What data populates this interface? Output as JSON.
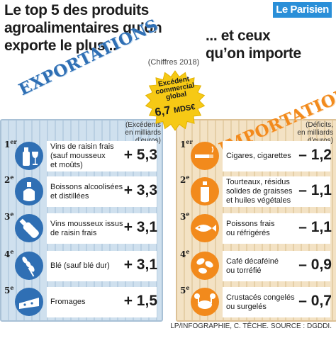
{
  "header": {
    "title_left": "Le top 5 des produits\nagroalimentaires qu’on\nexporte le plus...",
    "title_right": "... et ceux\nqu’on importe",
    "logo": "Le Parisien",
    "year_note": "(Chiffres 2018)"
  },
  "burst": {
    "label": "Excédent\ncommercial\nglobal",
    "value": "6,7",
    "unit": "MDS€",
    "color": "#f6c915"
  },
  "exports": {
    "heading": "EXPORTATIONS",
    "unit_note": "(Excédents\nen milliards d’euros)",
    "color": "#2f6fb4"
  },
  "imports": {
    "heading": "IMPORTATIONS",
    "unit_note": "(Déficits,\nen milliards d’euros)",
    "color": "#f28a1c"
  },
  "source": "LP/INFOGRAPHIE, C. TÊCHE. SOURCE : DGDDI.",
  "chart_data": {
    "type": "table",
    "title": "Le top 5 des produits agroalimentaires qu’on exporte le plus... et ceux qu’on importe",
    "subtitle": "(Chiffres 2018)",
    "exports": [
      {
        "rank": "1",
        "rank_suffix": "er",
        "product": "Vins de raisin frais\n(sauf mousseux\net moûts)",
        "value": 5.3,
        "display": "+ 5,3",
        "icon": "wine-bottle-glass-icon"
      },
      {
        "rank": "2",
        "rank_suffix": "e",
        "product": "Boissons alcoolisées\net distillées",
        "value": 3.3,
        "display": "+ 3,3",
        "icon": "liquor-bottle-icon"
      },
      {
        "rank": "3",
        "rank_suffix": "e",
        "product": "Vins mousseux issus\nde raisin frais",
        "value": 3.1,
        "display": "+ 3,1",
        "icon": "champagne-bottle-icon"
      },
      {
        "rank": "4",
        "rank_suffix": "e",
        "product": "Blé (sauf blé dur)",
        "value": 3.1,
        "display": "+ 3,1",
        "icon": "wheat-icon"
      },
      {
        "rank": "5",
        "rank_suffix": "e",
        "product": "Fromages",
        "value": 1.5,
        "display": "+ 1,5",
        "icon": "cheese-icon"
      }
    ],
    "imports": [
      {
        "rank": "1",
        "rank_suffix": "er",
        "product": "Cigares, cigarettes",
        "value": -1.2,
        "display": "– 1,2",
        "icon": "cigarette-icon"
      },
      {
        "rank": "2",
        "rank_suffix": "e",
        "product": "Tourteaux, résidus\nsolides de graisses\net huiles végétales",
        "value": -1.1,
        "display": "– 1,1",
        "icon": "oil-bottle-icon"
      },
      {
        "rank": "3",
        "rank_suffix": "e",
        "product": "Poissons frais\nou réfrigérés",
        "value": -1.1,
        "display": "– 1,1",
        "icon": "fish-icon"
      },
      {
        "rank": "4",
        "rank_suffix": "e",
        "product": "Café décaféiné\nou torréfié",
        "value": -0.9,
        "display": "– 0,9",
        "icon": "coffee-beans-icon"
      },
      {
        "rank": "5",
        "rank_suffix": "e",
        "product": "Crustacés congelés\nou surgelés",
        "value": -0.7,
        "display": "– 0,7",
        "icon": "crab-icon"
      }
    ]
  }
}
